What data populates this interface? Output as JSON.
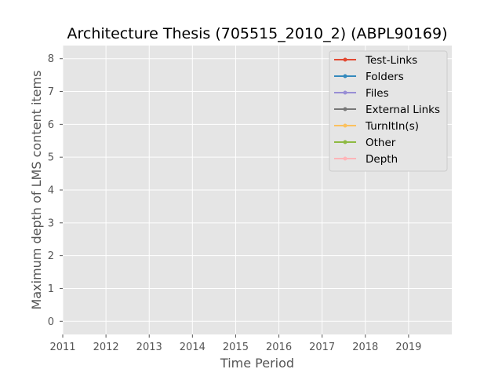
{
  "chart_data": {
    "type": "line",
    "title": "Architecture Thesis (705515_2010_2) (ABPL90169)",
    "xlabel": "Time Period",
    "ylabel": "Maximum depth of LMS content items",
    "xlim": [
      2011,
      2020
    ],
    "ylim": [
      -0.4,
      8.4
    ],
    "x_ticks": [
      "2011",
      "2012",
      "2013",
      "2014",
      "2015",
      "2016",
      "2017",
      "2018",
      "2019"
    ],
    "y_ticks": [
      "0",
      "1",
      "2",
      "3",
      "4",
      "5",
      "6",
      "7",
      "8"
    ],
    "grid": true,
    "legend_position": "top-right",
    "series": [
      {
        "name": "Test-Links",
        "color": "#E24A33",
        "x": [],
        "y": []
      },
      {
        "name": "Folders",
        "color": "#348ABD",
        "x": [],
        "y": []
      },
      {
        "name": "Files",
        "color": "#988ED5",
        "x": [],
        "y": []
      },
      {
        "name": "External Links",
        "color": "#777777",
        "x": [],
        "y": []
      },
      {
        "name": "TurnItIn(s)",
        "color": "#FBC15E",
        "x": [],
        "y": []
      },
      {
        "name": "Other",
        "color": "#8EBA42",
        "x": [],
        "y": []
      },
      {
        "name": "Depth",
        "color": "#FFB5B8",
        "x": [],
        "y": []
      }
    ]
  },
  "style": {
    "plot_background": "#E5E5E5",
    "grid_color": "#FFFFFF",
    "legend_background": "#E5E5E5",
    "legend_border": "#CCCCCC"
  }
}
